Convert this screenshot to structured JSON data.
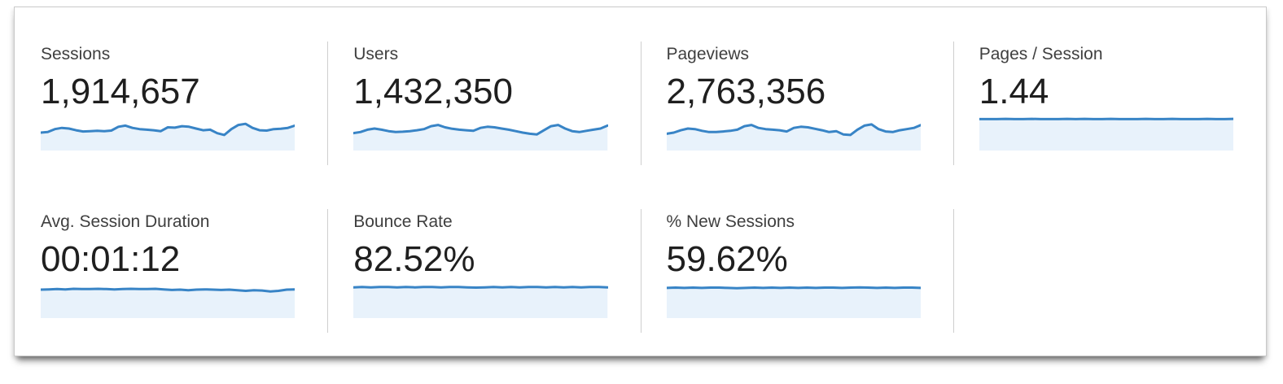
{
  "panel": {
    "description": "Analytics overview summary metrics",
    "rows": 2,
    "columns": 4
  },
  "colors": {
    "sparkline_stroke": "#3884c6",
    "sparkline_fill": "#e8f2fb",
    "divider": "#cfcfcf",
    "label_text": "#3f3f3f",
    "value_text": "#1f1f1f",
    "panel_border": "#c9c9c9",
    "panel_background": "#ffffff"
  },
  "metrics": [
    {
      "id": "sessions",
      "label": "Sessions",
      "value": "1,914,657"
    },
    {
      "id": "users",
      "label": "Users",
      "value": "1,432,350"
    },
    {
      "id": "pageviews",
      "label": "Pageviews",
      "value": "2,763,356"
    },
    {
      "id": "pages-per-session",
      "label": "Pages / Session",
      "value": "1.44"
    },
    {
      "id": "avg-session-duration",
      "label": "Avg. Session Duration",
      "value": "00:01:12"
    },
    {
      "id": "bounce-rate",
      "label": "Bounce Rate",
      "value": "82.52%"
    },
    {
      "id": "percent-new-sessions",
      "label": "% New Sessions",
      "value": "59.62%"
    }
  ],
  "chart_data": [
    {
      "type": "line",
      "metric": "Sessions",
      "title": "",
      "xlabel": "",
      "ylabel": "",
      "legend": false,
      "grid": false,
      "note": "unlabeled sparkline; values are normalized 0-1 estimates of line height",
      "values_normalized": [
        0.5,
        0.52,
        0.62,
        0.66,
        0.64,
        0.58,
        0.54,
        0.55,
        0.56,
        0.55,
        0.57,
        0.7,
        0.74,
        0.66,
        0.62,
        0.6,
        0.58,
        0.55,
        0.68,
        0.67,
        0.72,
        0.7,
        0.64,
        0.58,
        0.6,
        0.48,
        0.42,
        0.62,
        0.76,
        0.8,
        0.66,
        0.58,
        0.57,
        0.62,
        0.63,
        0.66,
        0.74
      ]
    },
    {
      "type": "line",
      "metric": "Users",
      "note": "unlabeled sparkline; normalized estimates",
      "values_normalized": [
        0.48,
        0.52,
        0.6,
        0.64,
        0.6,
        0.55,
        0.52,
        0.53,
        0.55,
        0.58,
        0.62,
        0.72,
        0.76,
        0.68,
        0.63,
        0.6,
        0.58,
        0.56,
        0.66,
        0.7,
        0.68,
        0.64,
        0.6,
        0.55,
        0.5,
        0.46,
        0.44,
        0.58,
        0.72,
        0.76,
        0.64,
        0.55,
        0.52,
        0.56,
        0.6,
        0.64,
        0.74
      ]
    },
    {
      "type": "line",
      "metric": "Pageviews",
      "note": "unlabeled sparkline; normalized estimates",
      "values_normalized": [
        0.46,
        0.5,
        0.58,
        0.64,
        0.62,
        0.56,
        0.52,
        0.52,
        0.54,
        0.56,
        0.6,
        0.72,
        0.76,
        0.66,
        0.62,
        0.6,
        0.58,
        0.54,
        0.66,
        0.7,
        0.68,
        0.63,
        0.58,
        0.52,
        0.55,
        0.44,
        0.42,
        0.6,
        0.74,
        0.78,
        0.62,
        0.54,
        0.52,
        0.58,
        0.62,
        0.66,
        0.76
      ]
    },
    {
      "type": "line",
      "metric": "Pages / Session",
      "note": "nearly flat sparkline at top of fill",
      "values_normalized": [
        0.96,
        0.96,
        0.96,
        0.97,
        0.96,
        0.96,
        0.97,
        0.96,
        0.96,
        0.96,
        0.97,
        0.96,
        0.97,
        0.96,
        0.96,
        0.97,
        0.96,
        0.96,
        0.96,
        0.97,
        0.96,
        0.96,
        0.97,
        0.96,
        0.96,
        0.96,
        0.97,
        0.96,
        0.96,
        0.97
      ]
    },
    {
      "type": "line",
      "metric": "Avg. Session Duration",
      "note": "mostly flat sparkline with slight dip near right side",
      "values_normalized": [
        0.86,
        0.87,
        0.88,
        0.87,
        0.89,
        0.88,
        0.88,
        0.89,
        0.88,
        0.87,
        0.88,
        0.89,
        0.88,
        0.88,
        0.89,
        0.87,
        0.85,
        0.86,
        0.84,
        0.86,
        0.87,
        0.86,
        0.85,
        0.86,
        0.84,
        0.82,
        0.84,
        0.83,
        0.8,
        0.82,
        0.86,
        0.87
      ]
    },
    {
      "type": "line",
      "metric": "Bounce Rate",
      "note": "nearly flat sparkline at top of fill",
      "values_normalized": [
        0.94,
        0.95,
        0.94,
        0.95,
        0.95,
        0.94,
        0.95,
        0.94,
        0.95,
        0.95,
        0.94,
        0.95,
        0.95,
        0.94,
        0.93,
        0.94,
        0.95,
        0.94,
        0.95,
        0.94,
        0.95,
        0.95,
        0.94,
        0.95,
        0.94,
        0.95,
        0.94,
        0.95,
        0.95,
        0.94
      ]
    },
    {
      "type": "line",
      "metric": "% New Sessions",
      "note": "nearly flat sparkline with tiny bumps",
      "values_normalized": [
        0.92,
        0.93,
        0.92,
        0.93,
        0.92,
        0.93,
        0.93,
        0.92,
        0.91,
        0.92,
        0.93,
        0.92,
        0.93,
        0.92,
        0.93,
        0.92,
        0.93,
        0.92,
        0.93,
        0.93,
        0.92,
        0.93,
        0.94,
        0.93,
        0.92,
        0.93,
        0.92,
        0.93,
        0.93,
        0.92
      ]
    }
  ]
}
